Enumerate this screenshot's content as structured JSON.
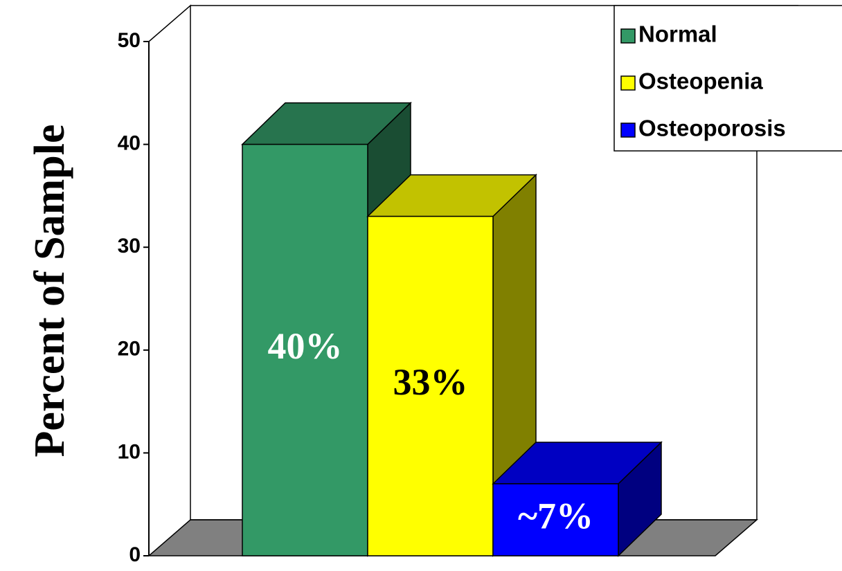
{
  "chart_data": {
    "type": "bar",
    "axis_title": "Percent of Sample",
    "series": [
      {
        "name": "Normal",
        "color": "#339966",
        "label_color": "#ffffff",
        "values": [
          40
        ],
        "value_labels": [
          "40%"
        ]
      },
      {
        "name": "Osteopenia",
        "color": "#ffff00",
        "label_color": "#000000",
        "values": [
          33
        ],
        "value_labels": [
          "33%"
        ]
      },
      {
        "name": "Osteoporosis",
        "color": "#0000ff",
        "label_color": "#ffffff",
        "values": [
          7
        ],
        "value_labels": [
          "~7%"
        ]
      }
    ],
    "ylim": [
      0,
      50
    ],
    "yticks": [
      0,
      10,
      20,
      30,
      40,
      50
    ],
    "legend": "top-right"
  }
}
